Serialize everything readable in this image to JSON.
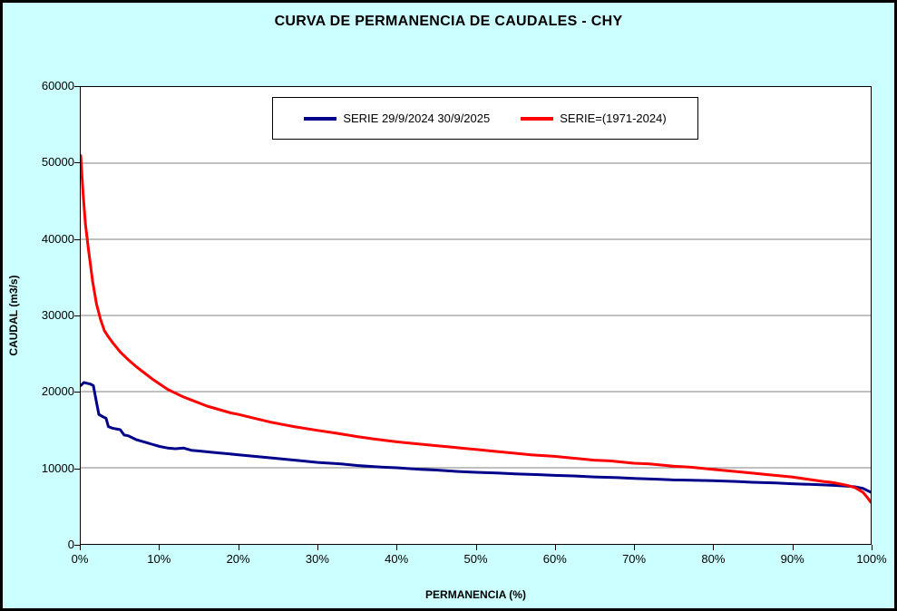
{
  "chart_data": {
    "type": "line",
    "title": "CURVA DE PERMANENCIA DE CAUDALES - CHY",
    "xlabel": "PERMANENCIA (%)",
    "ylabel": "CAUDAL (m3/s)",
    "xlim": [
      0,
      100
    ],
    "ylim": [
      0,
      60000
    ],
    "grid": "horizontal",
    "gridline_color": "#808080",
    "background_color": "#CCFFFF",
    "plot_background": "#FFFFFF",
    "legend_position": "top-center",
    "x_ticks": [
      {
        "v": 0,
        "label": "0%"
      },
      {
        "v": 10,
        "label": "10%"
      },
      {
        "v": 20,
        "label": "20%"
      },
      {
        "v": 30,
        "label": "30%"
      },
      {
        "v": 40,
        "label": "40%"
      },
      {
        "v": 50,
        "label": "50%"
      },
      {
        "v": 60,
        "label": "60%"
      },
      {
        "v": 70,
        "label": "70%"
      },
      {
        "v": 80,
        "label": "80%"
      },
      {
        "v": 90,
        "label": "90%"
      },
      {
        "v": 100,
        "label": "100%"
      }
    ],
    "y_ticks": [
      {
        "v": 0,
        "label": "0"
      },
      {
        "v": 10000,
        "label": "10000"
      },
      {
        "v": 20000,
        "label": "20000"
      },
      {
        "v": 30000,
        "label": "30000"
      },
      {
        "v": 40000,
        "label": "40000"
      },
      {
        "v": 50000,
        "label": "50000"
      },
      {
        "v": 60000,
        "label": "60000"
      }
    ],
    "series": [
      {
        "name": "SERIE 29/9/2024 30/9/2025",
        "color": "#00008B",
        "width": 3,
        "points": [
          [
            0,
            20800
          ],
          [
            0.4,
            21200
          ],
          [
            0.8,
            21100
          ],
          [
            1.2,
            21000
          ],
          [
            1.6,
            20800
          ],
          [
            2.0,
            18600
          ],
          [
            2.3,
            17000
          ],
          [
            2.8,
            16700
          ],
          [
            3.2,
            16500
          ],
          [
            3.5,
            15400
          ],
          [
            4,
            15200
          ],
          [
            5,
            15000
          ],
          [
            5.5,
            14300
          ],
          [
            6,
            14200
          ],
          [
            7,
            13700
          ],
          [
            8,
            13400
          ],
          [
            9,
            13100
          ],
          [
            10,
            12800
          ],
          [
            11,
            12600
          ],
          [
            12,
            12500
          ],
          [
            13,
            12600
          ],
          [
            14,
            12300
          ],
          [
            15,
            12200
          ],
          [
            17,
            12000
          ],
          [
            20,
            11700
          ],
          [
            22,
            11500
          ],
          [
            25,
            11200
          ],
          [
            28,
            10900
          ],
          [
            30,
            10700
          ],
          [
            33,
            10500
          ],
          [
            35,
            10300
          ],
          [
            38,
            10100
          ],
          [
            40,
            10000
          ],
          [
            43,
            9800
          ],
          [
            45,
            9700
          ],
          [
            48,
            9500
          ],
          [
            50,
            9400
          ],
          [
            53,
            9300
          ],
          [
            55,
            9200
          ],
          [
            58,
            9100
          ],
          [
            60,
            9000
          ],
          [
            63,
            8900
          ],
          [
            65,
            8800
          ],
          [
            68,
            8700
          ],
          [
            70,
            8600
          ],
          [
            73,
            8500
          ],
          [
            75,
            8400
          ],
          [
            78,
            8350
          ],
          [
            80,
            8300
          ],
          [
            83,
            8200
          ],
          [
            85,
            8100
          ],
          [
            88,
            8000
          ],
          [
            90,
            7900
          ],
          [
            93,
            7800
          ],
          [
            95,
            7700
          ],
          [
            97,
            7600
          ],
          [
            98,
            7500
          ],
          [
            99,
            7300
          ],
          [
            100,
            6800
          ]
        ]
      },
      {
        "name": "SERIE=(1971-2024)",
        "color": "#FF0000",
        "width": 3,
        "points": [
          [
            0,
            51000
          ],
          [
            0.3,
            46000
          ],
          [
            0.6,
            42000
          ],
          [
            1,
            38500
          ],
          [
            1.5,
            34500
          ],
          [
            2,
            31500
          ],
          [
            2.5,
            29500
          ],
          [
            3,
            28000
          ],
          [
            3.5,
            27200
          ],
          [
            4,
            26500
          ],
          [
            5,
            25200
          ],
          [
            6,
            24200
          ],
          [
            7,
            23300
          ],
          [
            8,
            22500
          ],
          [
            9,
            21700
          ],
          [
            10,
            21000
          ],
          [
            11,
            20300
          ],
          [
            12,
            19800
          ],
          [
            13,
            19300
          ],
          [
            14,
            18900
          ],
          [
            15,
            18500
          ],
          [
            16,
            18100
          ],
          [
            17,
            17800
          ],
          [
            18,
            17500
          ],
          [
            19,
            17200
          ],
          [
            20,
            17000
          ],
          [
            22,
            16500
          ],
          [
            24,
            16000
          ],
          [
            25,
            15800
          ],
          [
            27,
            15400
          ],
          [
            30,
            14900
          ],
          [
            32,
            14600
          ],
          [
            35,
            14100
          ],
          [
            37,
            13800
          ],
          [
            40,
            13400
          ],
          [
            42,
            13200
          ],
          [
            45,
            12900
          ],
          [
            47,
            12700
          ],
          [
            50,
            12400
          ],
          [
            52,
            12200
          ],
          [
            55,
            11900
          ],
          [
            57,
            11700
          ],
          [
            60,
            11500
          ],
          [
            62,
            11300
          ],
          [
            65,
            11000
          ],
          [
            67,
            10900
          ],
          [
            70,
            10600
          ],
          [
            72,
            10500
          ],
          [
            75,
            10200
          ],
          [
            77,
            10100
          ],
          [
            80,
            9800
          ],
          [
            82,
            9600
          ],
          [
            85,
            9300
          ],
          [
            87,
            9100
          ],
          [
            90,
            8800
          ],
          [
            92,
            8500
          ],
          [
            94,
            8200
          ],
          [
            95,
            8100
          ],
          [
            96,
            7900
          ],
          [
            97,
            7700
          ],
          [
            98,
            7400
          ],
          [
            99,
            6800
          ],
          [
            99.5,
            6200
          ],
          [
            100,
            5500
          ]
        ]
      }
    ]
  }
}
